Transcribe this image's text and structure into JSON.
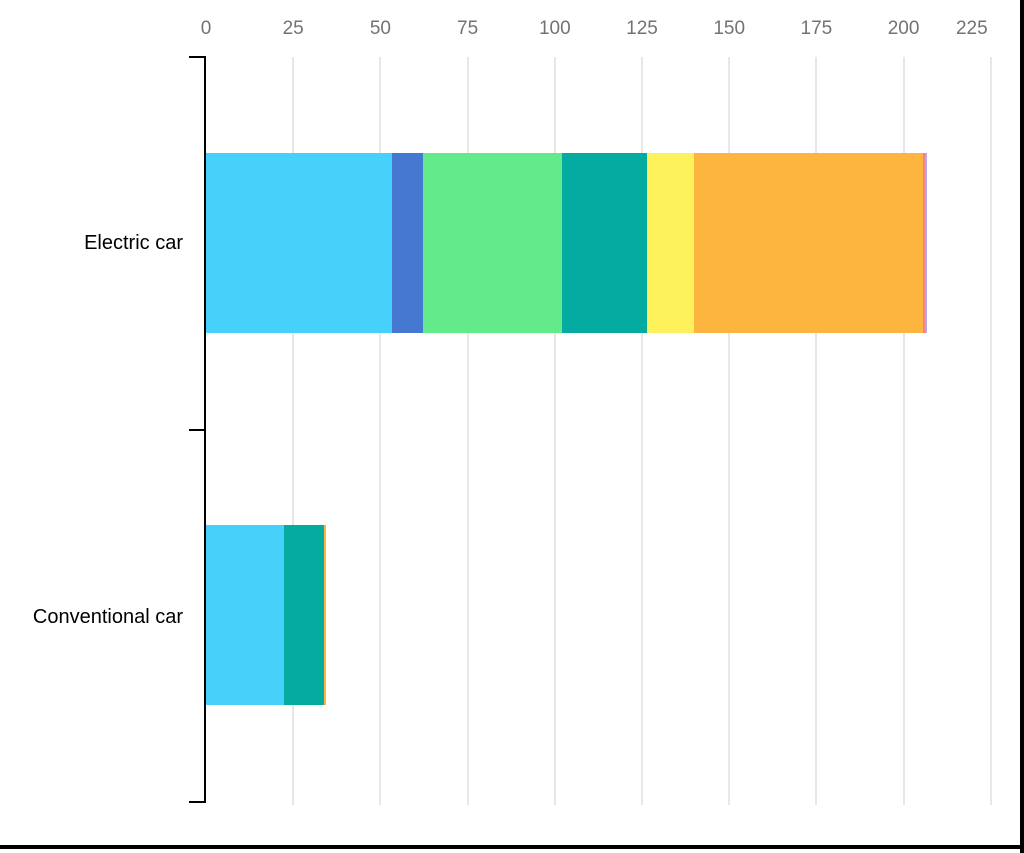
{
  "chart_data": {
    "type": "bar",
    "orientation": "horizontal",
    "stacked": true,
    "title": "",
    "categories": [
      "Electric car",
      "Conventional car"
    ],
    "x_axis": {
      "position": "top",
      "ticks": [
        0,
        25,
        50,
        75,
        100,
        125,
        150,
        175,
        200,
        225
      ],
      "lim": [
        0,
        225
      ]
    },
    "y_axis": {
      "domain_line": true,
      "outer_ticks": 3
    },
    "grid": true,
    "legend": false,
    "series": [
      {
        "name": "cyan",
        "color": "#45d1fa",
        "values": [
          53.2,
          22.3
        ]
      },
      {
        "name": "blue",
        "color": "#4478d1",
        "values": [
          8.9,
          0
        ]
      },
      {
        "name": "green",
        "color": "#63ea8b",
        "values": [
          39.9,
          0
        ]
      },
      {
        "name": "teal",
        "color": "#04aba0",
        "values": [
          24.5,
          11.4
        ]
      },
      {
        "name": "yellow",
        "color": "#fef25c",
        "values": [
          13.3,
          0
        ]
      },
      {
        "name": "orange",
        "color": "#fdb53f",
        "values": [
          65.8,
          0.7
        ]
      },
      {
        "name": "pink",
        "color": "#f2808f",
        "values": [
          0.6,
          0
        ]
      },
      {
        "name": "purple",
        "color": "#b5a8e8",
        "values": [
          0.6,
          0
        ]
      }
    ],
    "totals": [
      206.8,
      34.4
    ],
    "colors": {
      "grid": "#e7e7e7",
      "tick_label": "#737373",
      "category_label": "#000000",
      "axis": "#000000",
      "background": "#ffffff",
      "frame": "#000000"
    }
  }
}
